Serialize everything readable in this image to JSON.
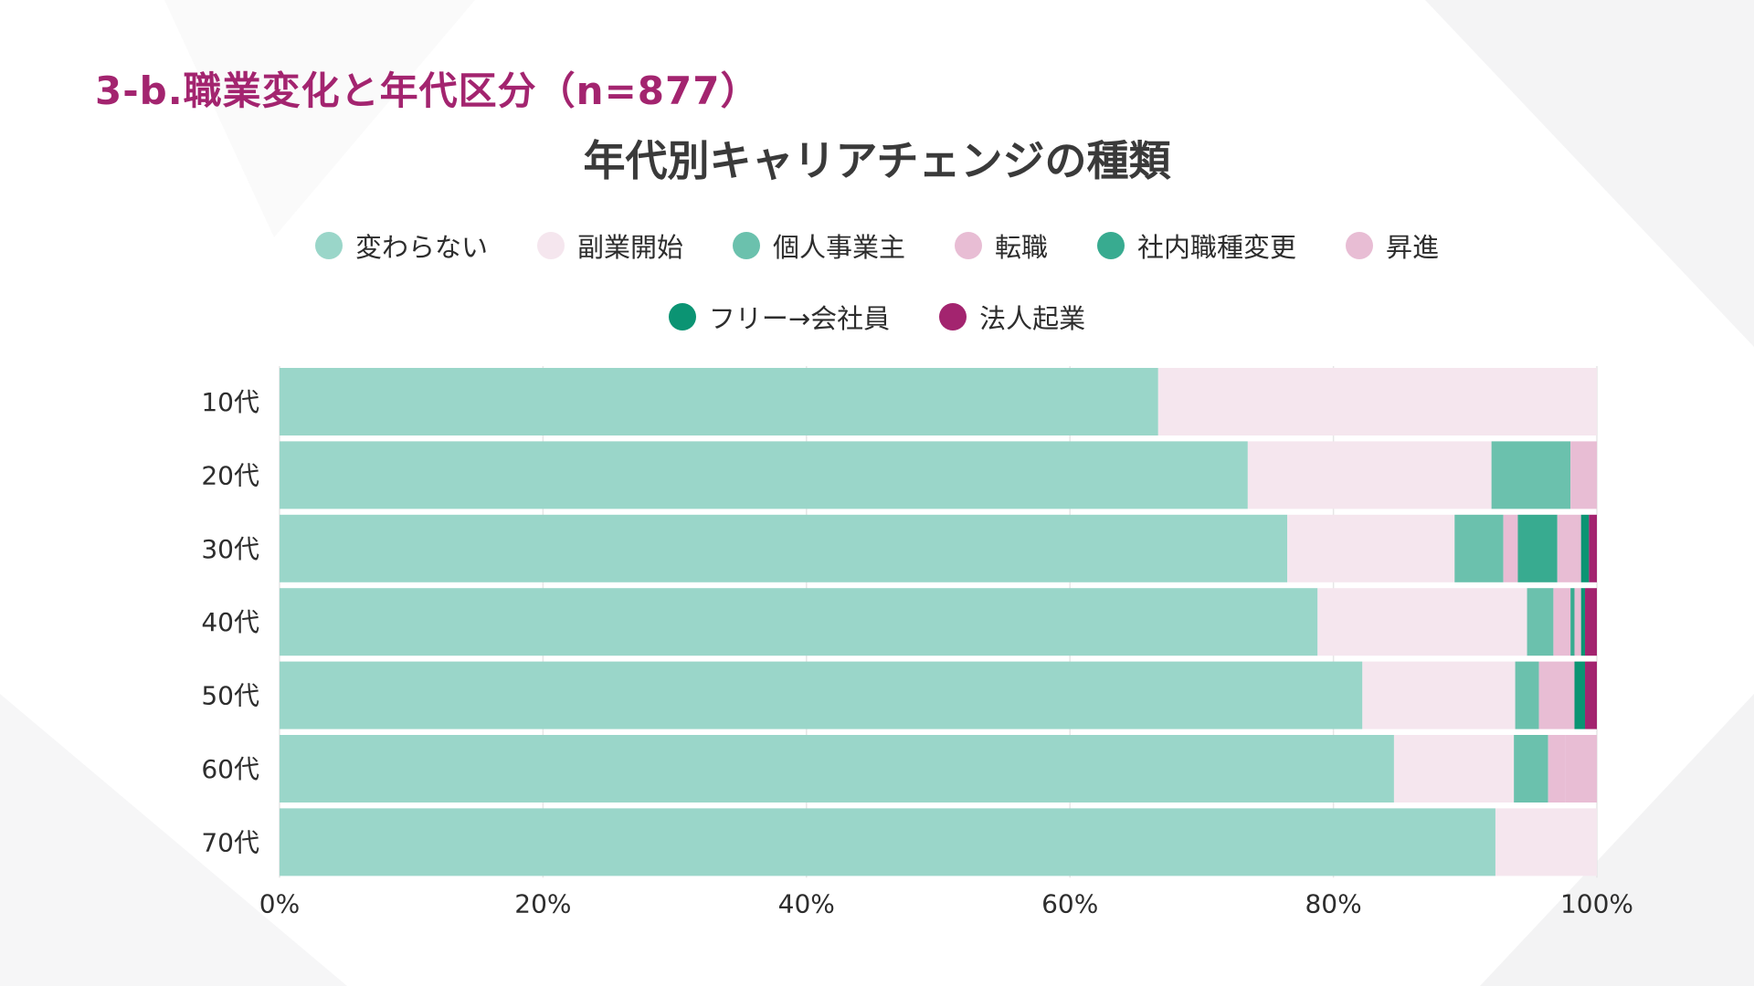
{
  "header": {
    "section_title": "3-b.職業変化と年代区分（n=877）"
  },
  "colors": {
    "title_accent": "#a3246f",
    "background": "#ffffff",
    "grid": "#e6e6e6"
  },
  "chart_data": {
    "type": "bar",
    "orientation": "horizontal",
    "stacked": true,
    "normalized": true,
    "title": "年代別キャリアチェンジの種類",
    "xlabel": "",
    "ylabel": "",
    "xlim": [
      0,
      100
    ],
    "grid": true,
    "legend_position": "top",
    "categories": [
      "10代",
      "20代",
      "30代",
      "40代",
      "50代",
      "60代",
      "70代"
    ],
    "x_ticks": [
      "0%",
      "20%",
      "40%",
      "60%",
      "80%",
      "100%"
    ],
    "series": [
      {
        "name": "変わらない",
        "color": "#9ad6c9",
        "values": [
          66.7,
          73.5,
          76.5,
          78.8,
          82.2,
          84.6,
          92.3
        ]
      },
      {
        "name": "副業開始",
        "color": "#f5e6ee",
        "values": [
          33.3,
          18.5,
          12.7,
          15.9,
          11.6,
          9.1,
          7.7
        ]
      },
      {
        "name": "個人事業主",
        "color": "#6bc1ad",
        "values": [
          0,
          6.0,
          3.7,
          2.0,
          1.8,
          2.6,
          0
        ]
      },
      {
        "name": "転職",
        "color": "#e8bdd4",
        "values": [
          0,
          0,
          1.1,
          1.3,
          0,
          1.3,
          0
        ]
      },
      {
        "name": "社内職種変更",
        "color": "#38ab90",
        "values": [
          0,
          0,
          3.0,
          0.3,
          0,
          0,
          0
        ]
      },
      {
        "name": "昇進",
        "color": "#e8bdd4",
        "values": [
          0,
          2.0,
          1.8,
          0.5,
          2.7,
          2.4,
          0
        ]
      },
      {
        "name": "フリー→会社員",
        "color": "#0b9473",
        "values": [
          0,
          0,
          0.6,
          0.3,
          0.8,
          0,
          0
        ]
      },
      {
        "name": "法人起業",
        "color": "#a3246f",
        "values": [
          0,
          0,
          0.6,
          0.9,
          0.9,
          0,
          0
        ]
      }
    ]
  }
}
